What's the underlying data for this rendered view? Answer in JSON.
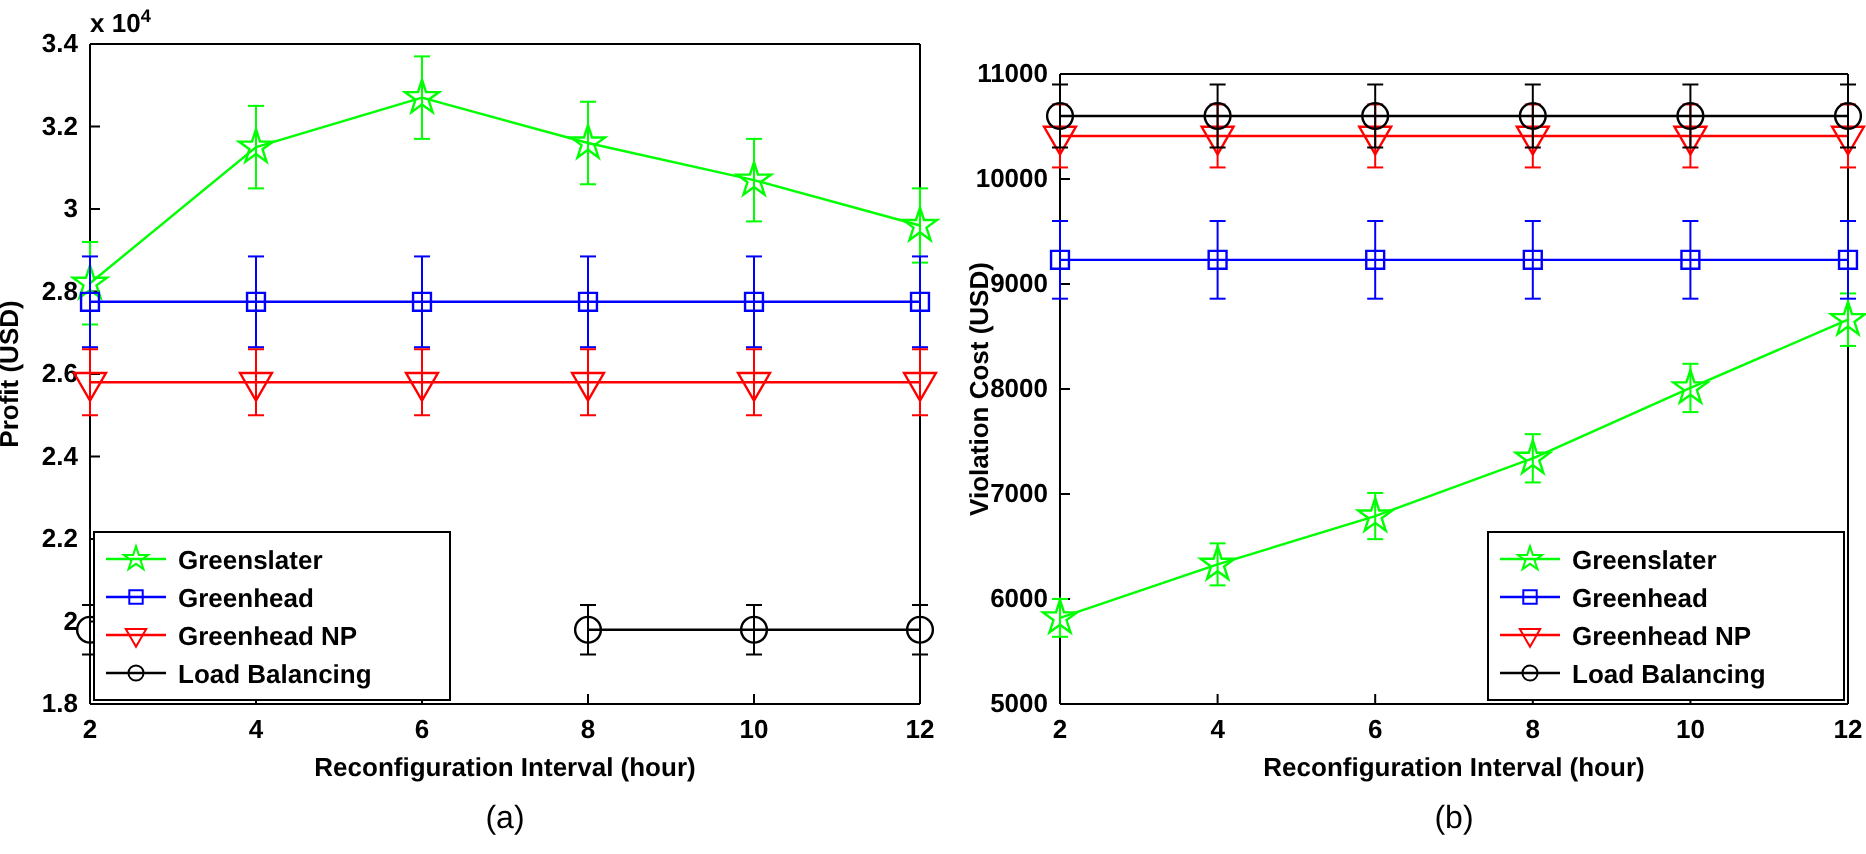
{
  "chart_data": [
    {
      "type": "line",
      "title": "(a)",
      "xlabel": "Reconfiguration Interval (hour)",
      "ylabel": "Profit (USD)",
      "annotations": [
        "x 10$^{4}$"
      ],
      "x": [
        2,
        4,
        6,
        8,
        10,
        12
      ],
      "xlim": [
        2,
        12
      ],
      "xticks": [
        2,
        4,
        6,
        8,
        10,
        12
      ],
      "ylim": [
        1.8,
        3.4
      ],
      "yticks": [
        1.8,
        2,
        2.2,
        2.4,
        2.6,
        2.8,
        3,
        3.2,
        3.4
      ],
      "grid": false,
      "legend": "bottom left",
      "series": [
        {
          "name": "Greenslater",
          "color": "#00ff00",
          "marker": "star",
          "values": [
            2.82,
            3.15,
            3.27,
            3.16,
            3.07,
            2.96
          ],
          "errors": [
            0.1,
            0.1,
            0.1,
            0.1,
            0.1,
            0.09
          ]
        },
        {
          "name": "Greenhead",
          "color": "#0000ff",
          "marker": "square",
          "values": [
            2.775,
            2.775,
            2.775,
            2.775,
            2.775,
            2.775
          ],
          "errors": [
            0.11,
            0.11,
            0.11,
            0.11,
            0.11,
            0.11
          ]
        },
        {
          "name": "Greenhead NP",
          "color": "#ff0000",
          "marker": "triangle",
          "values": [
            2.58,
            2.58,
            2.58,
            2.58,
            2.58,
            2.58
          ],
          "errors": [
            0.08,
            0.08,
            0.08,
            0.08,
            0.08,
            0.08
          ]
        },
        {
          "name": "Load Balancing",
          "color": "#000000",
          "marker": "circle",
          "values": [
            1.98,
            null,
            null,
            1.98,
            1.98,
            1.98
          ],
          "errors": [
            0.06,
            null,
            null,
            0.06,
            0.06,
            0.06
          ]
        }
      ]
    },
    {
      "type": "line",
      "title": "(b)",
      "xlabel": "Reconfiguration Interval (hour)",
      "ylabel": "Violation Cost (USD)",
      "x": [
        2,
        4,
        6,
        8,
        10,
        12
      ],
      "xlim": [
        2,
        12
      ],
      "xticks": [
        2,
        4,
        6,
        8,
        10,
        12
      ],
      "ylim": [
        5000,
        11000
      ],
      "yticks": [
        5000,
        6000,
        7000,
        8000,
        9000,
        10000,
        11000
      ],
      "grid": false,
      "legend": "bottom right",
      "series": [
        {
          "name": "Greenslater",
          "color": "#00ff00",
          "marker": "star",
          "values": [
            5820,
            6330,
            6790,
            7340,
            8010,
            8660
          ],
          "errors": [
            180,
            200,
            220,
            230,
            230,
            250
          ]
        },
        {
          "name": "Greenhead",
          "color": "#0000ff",
          "marker": "square",
          "values": [
            9230,
            9230,
            9230,
            9230,
            9230,
            9230
          ],
          "errors": [
            370,
            370,
            370,
            370,
            370,
            370
          ]
        },
        {
          "name": "Greenhead NP",
          "color": "#ff0000",
          "marker": "triangle",
          "values": [
            10410,
            10410,
            10410,
            10410,
            10410,
            10410
          ],
          "errors": [
            300,
            300,
            300,
            300,
            300,
            300
          ]
        },
        {
          "name": "Load Balancing",
          "color": "#000000",
          "marker": "circle",
          "values": [
            10600,
            10600,
            10600,
            10600,
            10600,
            10600
          ],
          "errors": [
            300,
            300,
            300,
            300,
            300,
            300
          ]
        }
      ]
    }
  ]
}
